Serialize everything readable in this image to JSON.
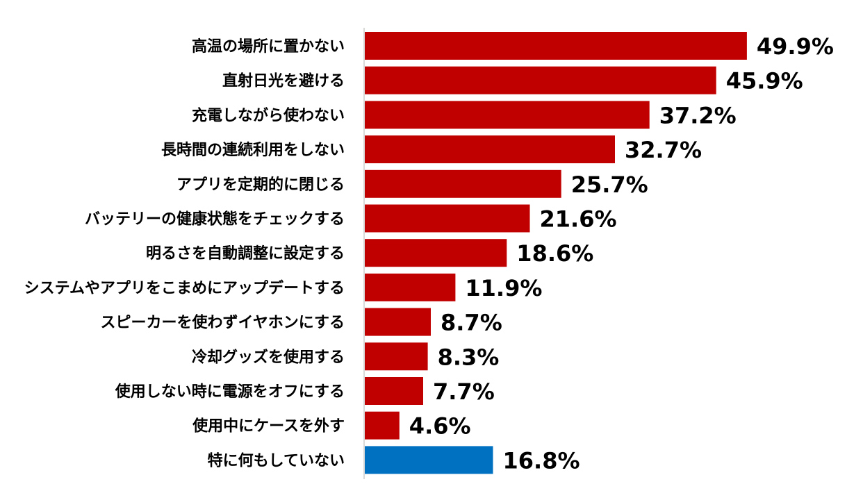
{
  "chart_data": {
    "type": "bar",
    "orientation": "horizontal",
    "value_suffix": "%",
    "categories": [
      "高温の場所に置かない",
      "直射日光を避ける",
      "充電しながら使わない",
      "長時間の連続利用をしない",
      "アプリを定期的に閉じる",
      "バッテリーの健康状態をチェックする",
      "明るさを自動調整に設定する",
      "システムやアプリをこまめにアップデートする",
      "スピーカーを使わずイヤホンにする",
      "冷却グッズを使用する",
      "使用しない時に電源をオフにする",
      "使用中にケースを外す",
      "特に何もしていない"
    ],
    "values": [
      49.9,
      45.9,
      37.2,
      32.7,
      25.7,
      21.6,
      18.6,
      11.9,
      8.7,
      8.3,
      7.7,
      4.6,
      16.8
    ],
    "bar_colors": [
      "#C00000",
      "#C00000",
      "#C00000",
      "#C00000",
      "#C00000",
      "#C00000",
      "#C00000",
      "#C00000",
      "#C00000",
      "#C00000",
      "#C00000",
      "#C00000",
      "#0070C0"
    ],
    "xlim": [
      0,
      50
    ],
    "grid": false,
    "axis_line_color": "#D9D9D9"
  }
}
